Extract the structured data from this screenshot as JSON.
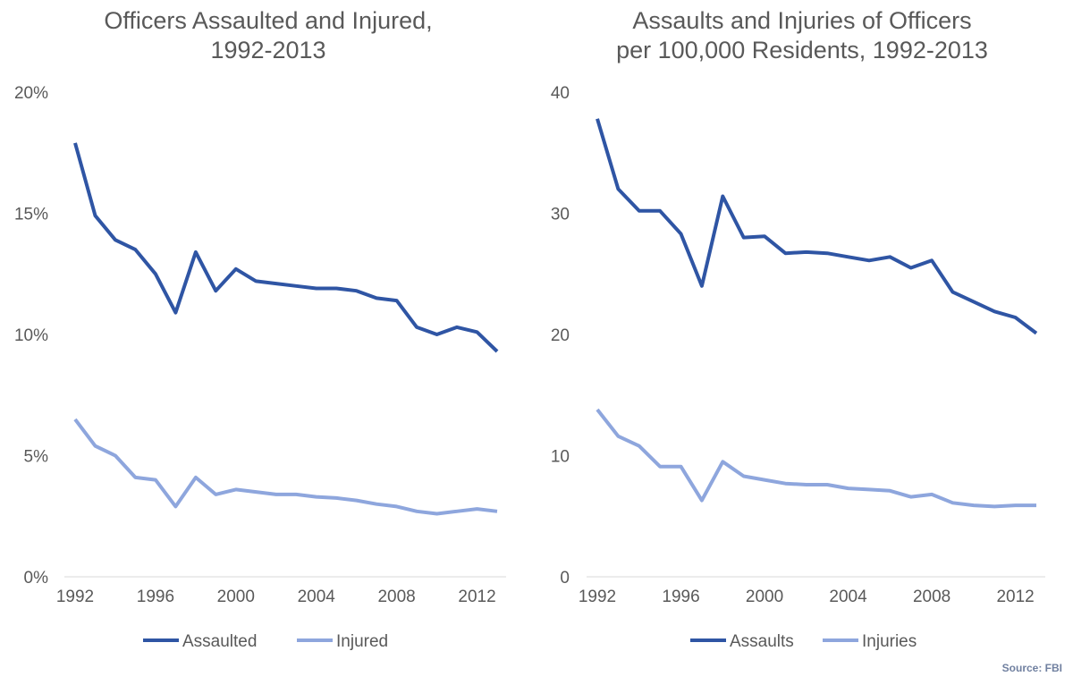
{
  "chart_data": [
    {
      "type": "line",
      "title": [
        "Officers Assaulted and Injured,",
        "1992-2013"
      ],
      "x": [
        1992,
        1993,
        1994,
        1995,
        1996,
        1997,
        1998,
        1999,
        2000,
        2001,
        2002,
        2003,
        2004,
        2005,
        2006,
        2007,
        2008,
        2009,
        2010,
        2011,
        2012,
        2013
      ],
      "xticks": [
        "1992",
        "1996",
        "2000",
        "2004",
        "2008",
        "2012"
      ],
      "yticks": [
        "0%",
        "5%",
        "10%",
        "15%",
        "20%"
      ],
      "ylim": [
        0,
        20
      ],
      "yunit": "%",
      "legend_position": "bottom",
      "series": [
        {
          "name": "Assaulted",
          "color": "#2f55a4",
          "values": [
            17.9,
            14.9,
            13.9,
            13.5,
            12.5,
            10.9,
            13.4,
            11.8,
            12.7,
            12.2,
            12.1,
            12.0,
            11.9,
            11.9,
            11.8,
            11.5,
            11.4,
            10.3,
            10.0,
            10.3,
            10.1,
            9.3
          ]
        },
        {
          "name": "Injured",
          "color": "#8ea6dd",
          "values": [
            6.5,
            5.4,
            5.0,
            4.1,
            4.0,
            2.9,
            4.1,
            3.4,
            3.6,
            3.5,
            3.4,
            3.4,
            3.3,
            3.25,
            3.15,
            3.0,
            2.9,
            2.7,
            2.6,
            2.7,
            2.8,
            2.7
          ]
        }
      ]
    },
    {
      "type": "line",
      "title": [
        "Assaults and Injuries of Officers",
        "per 100,000 Residents, 1992-2013"
      ],
      "x": [
        1992,
        1993,
        1994,
        1995,
        1996,
        1997,
        1998,
        1999,
        2000,
        2001,
        2002,
        2003,
        2004,
        2005,
        2006,
        2007,
        2008,
        2009,
        2010,
        2011,
        2012,
        2013
      ],
      "xticks": [
        "1992",
        "1996",
        "2000",
        "2004",
        "2008",
        "2012"
      ],
      "yticks": [
        "0",
        "10",
        "20",
        "30",
        "40"
      ],
      "ylim": [
        0,
        40
      ],
      "legend_position": "bottom",
      "series": [
        {
          "name": "Assaults",
          "color": "#2f55a4",
          "values": [
            37.8,
            32.0,
            30.2,
            30.2,
            28.3,
            24.0,
            31.4,
            28.0,
            28.1,
            26.7,
            26.8,
            26.7,
            26.4,
            26.1,
            26.4,
            25.5,
            26.1,
            23.5,
            22.7,
            21.9,
            21.4,
            20.1
          ]
        },
        {
          "name": "Injuries",
          "color": "#8ea6dd",
          "values": [
            13.8,
            11.6,
            10.8,
            9.1,
            9.1,
            6.3,
            9.5,
            8.3,
            8.0,
            7.7,
            7.6,
            7.6,
            7.3,
            7.2,
            7.1,
            6.6,
            6.8,
            6.1,
            5.9,
            5.8,
            5.9,
            5.9
          ]
        }
      ]
    }
  ],
  "source": "Source: FBI"
}
